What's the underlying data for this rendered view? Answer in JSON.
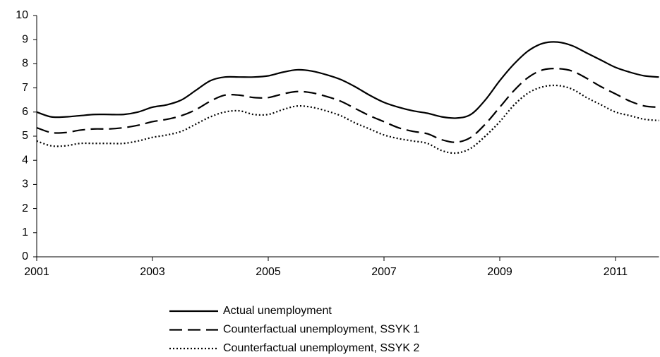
{
  "chart_data": {
    "type": "line",
    "x": [
      2001,
      2001.25,
      2001.5,
      2001.75,
      2002,
      2002.25,
      2002.5,
      2002.75,
      2003,
      2003.25,
      2003.5,
      2003.75,
      2004,
      2004.25,
      2004.5,
      2004.75,
      2005,
      2005.25,
      2005.5,
      2005.75,
      2006,
      2006.25,
      2006.5,
      2006.75,
      2007,
      2007.25,
      2007.5,
      2007.75,
      2008,
      2008.25,
      2008.5,
      2008.75,
      2009,
      2009.25,
      2009.5,
      2009.75,
      2010,
      2010.25,
      2010.5,
      2010.75,
      2011,
      2011.25,
      2011.5,
      2011.75
    ],
    "series": [
      {
        "name": "Actual unemployment",
        "color": "#000000",
        "style": "solid",
        "values": [
          6.0,
          5.8,
          5.8,
          5.85,
          5.9,
          5.9,
          5.9,
          6.0,
          6.2,
          6.3,
          6.5,
          6.9,
          7.3,
          7.45,
          7.45,
          7.45,
          7.5,
          7.65,
          7.75,
          7.7,
          7.55,
          7.35,
          7.05,
          6.7,
          6.4,
          6.2,
          6.05,
          5.95,
          5.8,
          5.75,
          5.9,
          6.5,
          7.3,
          8.0,
          8.55,
          8.85,
          8.9,
          8.75,
          8.45,
          8.15,
          7.85,
          7.65,
          7.5,
          7.45
        ]
      },
      {
        "name": "Counterfactual unemployment, SSYK 1",
        "color": "#000000",
        "style": "dashed",
        "values": [
          5.35,
          5.15,
          5.15,
          5.25,
          5.3,
          5.3,
          5.35,
          5.45,
          5.6,
          5.7,
          5.85,
          6.1,
          6.45,
          6.7,
          6.7,
          6.6,
          6.6,
          6.75,
          6.85,
          6.8,
          6.65,
          6.45,
          6.15,
          5.85,
          5.6,
          5.35,
          5.2,
          5.1,
          4.85,
          4.75,
          4.95,
          5.5,
          6.2,
          6.9,
          7.45,
          7.75,
          7.8,
          7.7,
          7.4,
          7.05,
          6.75,
          6.45,
          6.25,
          6.2
        ]
      },
      {
        "name": "Counterfactual unemployment, SSYK 2",
        "color": "#000000",
        "style": "dotted",
        "values": [
          4.8,
          4.6,
          4.6,
          4.7,
          4.7,
          4.7,
          4.7,
          4.8,
          4.95,
          5.05,
          5.2,
          5.5,
          5.8,
          6.0,
          6.05,
          5.9,
          5.9,
          6.1,
          6.25,
          6.2,
          6.05,
          5.85,
          5.55,
          5.3,
          5.05,
          4.9,
          4.8,
          4.7,
          4.4,
          4.3,
          4.5,
          5.0,
          5.6,
          6.3,
          6.8,
          7.05,
          7.1,
          6.95,
          6.6,
          6.3,
          6.0,
          5.85,
          5.7,
          5.65
        ]
      }
    ],
    "xlim": [
      2001,
      2011.75
    ],
    "xticks": [
      2001,
      2003,
      2005,
      2007,
      2009,
      2011
    ],
    "ylim": [
      0,
      10
    ],
    "yticks": [
      0,
      1,
      2,
      3,
      4,
      5,
      6,
      7,
      8,
      9,
      10
    ],
    "legend": "bottom"
  }
}
